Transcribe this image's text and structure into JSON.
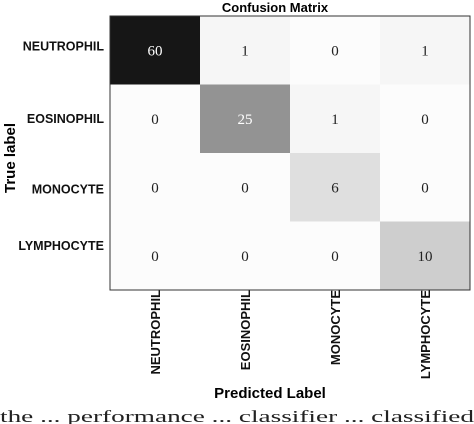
{
  "chart_data": {
    "type": "heatmap",
    "title": "Confusion Matrix",
    "xlabel": "Predicted Label",
    "ylabel": "True label",
    "rows": [
      "NEUTROPHIL",
      "EOSINOPHIL",
      "MONOCYTE",
      "LYMPHOCYTE"
    ],
    "columns": [
      "NEUTROPHIL",
      "EOSINOPHIL",
      "MONOCYTE",
      "LYMPHOCYTE"
    ],
    "values": [
      [
        60,
        1,
        0,
        1
      ],
      [
        0,
        25,
        1,
        0
      ],
      [
        0,
        0,
        6,
        0
      ],
      [
        0,
        0,
        0,
        10
      ]
    ],
    "grid": false
  },
  "caption": "the ... performance ... classifier ... classified"
}
